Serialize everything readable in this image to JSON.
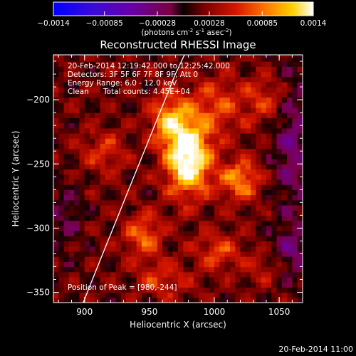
{
  "chart_data": {
    "type": "heatmap",
    "title": "Reconstructed RHESSI Image",
    "xlabel": "Heliocentric X (arcsec)",
    "ylabel": "Heliocentric Y (arcsec)",
    "xlim": [
      876,
      1068
    ],
    "ylim": [
      -358,
      -165
    ],
    "x_ticks": [
      900,
      950,
      1000,
      1050
    ],
    "y_ticks": [
      -200,
      -250,
      -300,
      -350
    ],
    "colorbar": {
      "range": [
        -0.0014,
        0.0014
      ],
      "ticks": [
        "-0.0014",
        "-0.00085",
        "-0.00028",
        "0.00028",
        "0.00085",
        "0.0014"
      ],
      "label_main": "(photons cm",
      "label_exp1": "-2",
      "label_mid": " s",
      "label_exp2": "-1",
      "label_mid2": " asec",
      "label_exp3": "-2",
      "label_end": ")"
    },
    "annotations": {
      "time": "20-Feb-2014 12:19:42.000 to 12:25:42.000",
      "detectors": "Detectors: 3F 5F 6F 7F 8F 9F, Att 0",
      "energy": "Energy Range: 6.0 - 12.0 keV",
      "clean": "Clean",
      "total_counts": "Total counts: 4.45E+04",
      "peak": "Position of Peak = [980,-244]"
    },
    "peak": [
      980,
      -244
    ],
    "limb_curve": [
      [
        899,
        -358
      ],
      [
        910,
        -330
      ],
      [
        922,
        -300
      ],
      [
        934,
        -270
      ],
      [
        946,
        -240
      ],
      [
        958,
        -210
      ],
      [
        970,
        -180
      ],
      [
        977,
        -165
      ]
    ],
    "sources": [
      {
        "x": 980,
        "y": -245,
        "amp": 1.0,
        "sx": 12,
        "sy": 20
      },
      {
        "x": 965,
        "y": -215,
        "amp": 0.55,
        "sx": 10,
        "sy": 14
      },
      {
        "x": 1020,
        "y": -262,
        "amp": 0.55,
        "sx": 11,
        "sy": 11
      },
      {
        "x": 945,
        "y": -305,
        "amp": 0.45,
        "sx": 10,
        "sy": 12
      },
      {
        "x": 1002,
        "y": -318,
        "amp": 0.35,
        "sx": 12,
        "sy": 10
      },
      {
        "x": 1000,
        "y": -205,
        "amp": 0.35,
        "sx": 14,
        "sy": 16
      },
      {
        "x": 915,
        "y": -240,
        "amp": 0.3,
        "sx": 12,
        "sy": 12
      },
      {
        "x": 1040,
        "y": -200,
        "amp": 0.3,
        "sx": 14,
        "sy": 14
      },
      {
        "x": 960,
        "y": -340,
        "amp": 0.3,
        "sx": 14,
        "sy": 10
      },
      {
        "x": 1040,
        "y": -330,
        "amp": 0.2,
        "sx": 12,
        "sy": 10
      }
    ],
    "negatives": [
      {
        "x": 1060,
        "y": -230,
        "amp": 0.35,
        "sx": 10,
        "sy": 40
      },
      {
        "x": 1060,
        "y": -320,
        "amp": 0.3,
        "sx": 12,
        "sy": 16
      },
      {
        "x": 885,
        "y": -290,
        "amp": 0.2,
        "sx": 10,
        "sy": 20
      }
    ]
  },
  "footer_timestamp": "20-Feb-2014 11:00"
}
